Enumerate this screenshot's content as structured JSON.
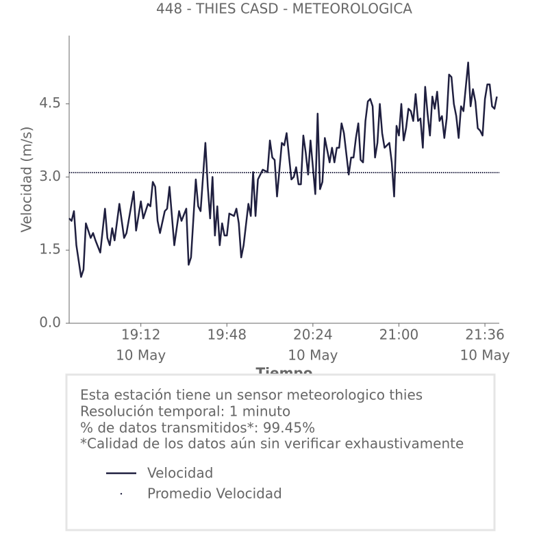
{
  "chart_data": {
    "type": "line",
    "title": "448 - THIES CASD - METEOROLOGICA",
    "xlabel": "Tiempo",
    "ylabel": "Velocidad (m/s)",
    "xlim": [
      "18:42",
      "21:42"
    ],
    "xticks": [
      "19:12",
      "19:48",
      "20:24",
      "21:00",
      "21:36"
    ],
    "xtick_dates": [
      "10 May",
      null,
      "10 May",
      null,
      "10 May"
    ],
    "ylim": [
      0,
      5.9
    ],
    "yticks": [
      {
        "value": 0,
        "label": "0.0"
      },
      1.5,
      {
        "value": 3,
        "label": "3.0"
      },
      4.5
    ],
    "x": [
      "18:42",
      "18:43",
      "18:44",
      "18:45",
      "18:47",
      "18:48",
      "18:49",
      "18:51",
      "18:52",
      "18:53",
      "18:55",
      "18:57",
      "18:58",
      "18:59",
      "19:00",
      "19:01",
      "19:03",
      "19:05",
      "19:06",
      "19:09",
      "19:10",
      "19:12",
      "19:13",
      "19:15",
      "19:16",
      "19:17",
      "19:18",
      "19:19",
      "19:20",
      "19:22",
      "19:23",
      "19:24",
      "19:26",
      "19:28",
      "19:29",
      "19:31",
      "19:32",
      "19:33",
      "19:35",
      "19:36",
      "19:37",
      "19:39",
      "19:40",
      "19:41",
      "19:42",
      "19:43",
      "19:44",
      "19:45",
      "19:46",
      "19:47",
      "19:48",
      "19:49",
      "19:51",
      "19:52",
      "19:53",
      "19:54",
      "19:55",
      "19:57",
      "19:58",
      "19:59",
      "20:00",
      "20:01",
      "20:02",
      "20:03",
      "20:05",
      "20:06",
      "20:07",
      "20:08",
      "20:09",
      "20:11",
      "20:12",
      "20:13",
      "20:15",
      "20:16",
      "20:17",
      "20:18",
      "20:19",
      "20:20",
      "20:21",
      "20:22",
      "20:23",
      "20:24",
      "20:25",
      "20:26",
      "20:27",
      "20:28",
      "20:29",
      "20:31",
      "20:32",
      "20:33",
      "20:34",
      "20:35",
      "20:36",
      "20:37",
      "20:39",
      "20:40",
      "20:41",
      "20:42",
      "20:43",
      "20:44",
      "20:45",
      "20:46",
      "20:47",
      "20:48",
      "20:49",
      "20:50",
      "20:51",
      "20:52",
      "20:53",
      "20:54",
      "20:55",
      "20:56",
      "20:57",
      "20:58",
      "20:59",
      "21:00",
      "21:01",
      "21:02",
      "21:03",
      "21:04",
      "21:05",
      "21:06",
      "21:07",
      "21:08",
      "21:09",
      "21:10",
      "21:11",
      "21:12",
      "21:13",
      "21:14",
      "21:15",
      "21:16",
      "21:17",
      "21:18",
      "21:19",
      "21:20",
      "21:21",
      "21:22",
      "21:23",
      "21:24",
      "21:25",
      "21:26",
      "21:27",
      "21:29",
      "21:30",
      "21:31",
      "21:32",
      "21:33",
      "21:34",
      "21:35",
      "21:36",
      "21:37",
      "21:38",
      "21:39",
      "21:40",
      "21:41"
    ],
    "series": [
      {
        "name": "Velocidad",
        "color": "#1f1f3f",
        "values": [
          2.15,
          2.1,
          2.3,
          1.6,
          0.95,
          1.1,
          2.05,
          1.75,
          1.85,
          1.7,
          1.45,
          2.35,
          1.75,
          1.6,
          1.95,
          1.7,
          2.45,
          1.75,
          1.85,
          2.7,
          1.9,
          2.5,
          2.15,
          2.45,
          2.4,
          2.9,
          2.8,
          2.1,
          1.85,
          2.3,
          2.35,
          2.8,
          1.6,
          2.3,
          2.1,
          2.35,
          1.2,
          1.35,
          2.95,
          2.4,
          2.3,
          3.7,
          2.8,
          2.15,
          3.0,
          1.8,
          2.4,
          1.6,
          2.05,
          1.8,
          1.8,
          2.25,
          2.2,
          2.35,
          2.05,
          1.35,
          1.6,
          2.45,
          2.2,
          3.1,
          2.2,
          2.95,
          3.05,
          3.15,
          3.1,
          3.75,
          3.4,
          3.35,
          2.6,
          3.7,
          3.65,
          3.9,
          2.95,
          3.0,
          3.2,
          2.85,
          2.85,
          3.85,
          3.5,
          3.05,
          3.75,
          3.2,
          2.65,
          4.3,
          2.75,
          2.9,
          3.8,
          3.3,
          3.6,
          3.3,
          3.6,
          3.6,
          4.1,
          3.9,
          3.05,
          3.4,
          3.4,
          3.8,
          4.1,
          3.35,
          3.3,
          4.15,
          4.55,
          4.6,
          4.45,
          3.4,
          3.7,
          4.5,
          3.9,
          3.6,
          3.65,
          3.7,
          3.3,
          2.6,
          4.05,
          3.85,
          4.5,
          3.75,
          4.0,
          4.4,
          4.35,
          4.15,
          4.7,
          4.15,
          4.2,
          3.6,
          4.85,
          4.3,
          3.85,
          4.65,
          4.4,
          4.75,
          4.15,
          4.25,
          3.8,
          4.2,
          5.1,
          5.05,
          4.5,
          4.25,
          3.8,
          4.45,
          4.35,
          5.35,
          4.45,
          4.8,
          4.55,
          4.0,
          3.95,
          3.85,
          4.6,
          4.9,
          4.9,
          4.45,
          4.4,
          4.65
        ]
      }
    ],
    "mean": {
      "name": "Promedio Velocidad",
      "color": "#1f1f3f",
      "value": 3.09
    },
    "notes": [
      "Esta estación tiene un sensor meteorologico thies",
      "Resolución temporal: 1 minuto",
      "% de datos transmitidos*: 99.45%",
      "*Calidad de los datos aún sin verificar exhaustivamente"
    ]
  }
}
